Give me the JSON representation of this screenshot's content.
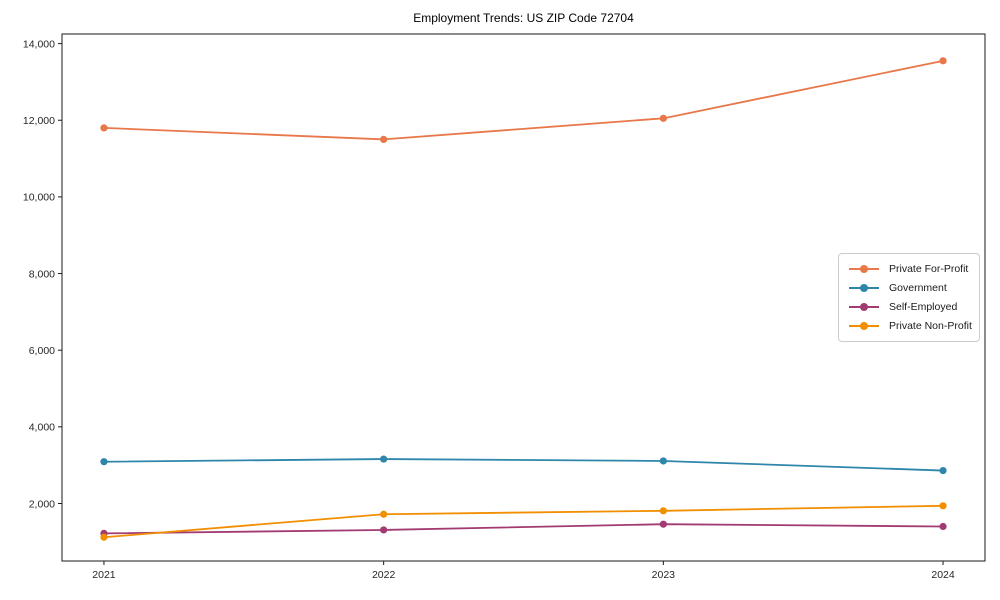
{
  "page": {
    "title": "Employment Trends: US ZIP Code 72704"
  },
  "chart_data": {
    "type": "line",
    "title": "Employment Trends: US ZIP Code 72704",
    "xlabel": "",
    "ylabel": "",
    "grid": false,
    "legend_position": "center-right",
    "x": [
      2021,
      2022,
      2023,
      2024
    ],
    "x_tick_labels": [
      "2021",
      "2022",
      "2023",
      "2024"
    ],
    "y_ticks": [
      2000,
      4000,
      6000,
      8000,
      10000,
      12000,
      14000
    ],
    "y_tick_labels": [
      "2,000",
      "4,000",
      "6,000",
      "8,000",
      "10,000",
      "12,000",
      "14,000"
    ],
    "xlim": [
      2020.85,
      2024.15
    ],
    "ylim": [
      500,
      14250
    ],
    "series": [
      {
        "name": "Private For-Profit",
        "color": "#E8774A",
        "values": [
          11800,
          11500,
          12050,
          13550
        ]
      },
      {
        "name": "Government",
        "color": "#2E86AB",
        "values": [
          3090,
          3160,
          3110,
          2860
        ]
      },
      {
        "name": "Self-Employed",
        "color": "#A23B72",
        "values": [
          1220,
          1310,
          1460,
          1400
        ]
      },
      {
        "name": "Private Non-Profit",
        "color": "#F18F01",
        "values": [
          1120,
          1720,
          1810,
          1940
        ]
      }
    ]
  }
}
